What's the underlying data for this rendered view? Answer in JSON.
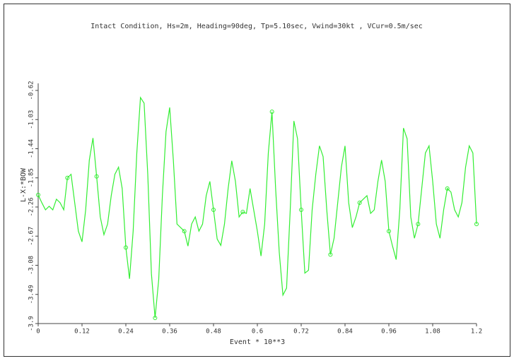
{
  "chart_data": {
    "type": "line",
    "title": "Intact Condition, Hs=2m, Heading=90deg, Tp=5.10sec, Vwind=30kt , VCur=0.5m/sec",
    "x_label": "Event * 10**3",
    "y_label": "L-X:*BOW",
    "x": [
      0,
      0.01,
      0.02,
      0.03,
      0.04,
      0.05,
      0.06,
      0.07,
      0.08,
      0.09,
      0.1,
      0.11,
      0.12,
      0.13,
      0.14,
      0.15,
      0.16,
      0.17,
      0.18,
      0.19,
      0.2,
      0.21,
      0.22,
      0.23,
      0.24,
      0.25,
      0.26,
      0.27,
      0.28,
      0.29,
      0.3,
      0.31,
      0.32,
      0.33,
      0.34,
      0.35,
      0.36,
      0.37,
      0.38,
      0.39,
      0.4,
      0.41,
      0.42,
      0.43,
      0.44,
      0.45,
      0.46,
      0.47,
      0.48,
      0.49,
      0.5,
      0.51,
      0.52,
      0.53,
      0.54,
      0.55,
      0.56,
      0.57,
      0.58,
      0.59,
      0.6,
      0.61,
      0.62,
      0.63,
      0.64,
      0.65,
      0.66,
      0.67,
      0.68,
      0.69,
      0.7,
      0.71,
      0.72,
      0.73,
      0.74,
      0.75,
      0.76,
      0.77,
      0.78,
      0.79,
      0.8,
      0.81,
      0.82,
      0.83,
      0.84,
      0.85,
      0.86,
      0.87,
      0.88,
      0.89,
      0.9,
      0.91,
      0.92,
      0.93,
      0.94,
      0.95,
      0.96,
      0.97,
      0.98,
      0.99,
      1,
      1.01,
      1.02,
      1.03,
      1.04,
      1.05,
      1.06,
      1.07,
      1.08,
      1.09,
      1.1,
      1.11,
      1.12,
      1.13,
      1.14,
      1.15,
      1.16,
      1.17,
      1.18,
      1.19,
      1.2
    ],
    "series": [
      {
        "name": "L-X:*BOW",
        "color": "#33ee33",
        "values": [
          -2.09,
          -2.2,
          -2.3,
          -2.25,
          -2.3,
          -2.15,
          -2.2,
          -2.3,
          -1.85,
          -1.8,
          -2.2,
          -2.6,
          -2.75,
          -2.3,
          -1.6,
          -1.29,
          -1.83,
          -2.4,
          -2.65,
          -2.5,
          -2.1,
          -1.8,
          -1.7,
          -2.0,
          -2.83,
          -3.27,
          -2.6,
          -1.5,
          -0.72,
          -0.8,
          -1.8,
          -3.2,
          -3.82,
          -3.28,
          -2.1,
          -1.2,
          -0.86,
          -1.6,
          -2.5,
          -2.55,
          -2.6,
          -2.81,
          -2.5,
          -2.4,
          -2.6,
          -2.5,
          -2.1,
          -1.9,
          -2.3,
          -2.71,
          -2.8,
          -2.5,
          -2.0,
          -1.61,
          -1.9,
          -2.4,
          -2.33,
          -2.35,
          -2.0,
          -2.3,
          -2.6,
          -2.95,
          -2.5,
          -1.5,
          -0.92,
          -2.0,
          -2.9,
          -3.5,
          -3.4,
          -2.3,
          -1.05,
          -1.3,
          -2.3,
          -3.19,
          -3.15,
          -2.3,
          -1.8,
          -1.4,
          -1.55,
          -2.3,
          -2.93,
          -2.7,
          -2.2,
          -1.7,
          -1.4,
          -2.2,
          -2.55,
          -2.4,
          -2.2,
          -2.15,
          -2.1,
          -2.35,
          -2.3,
          -1.9,
          -1.6,
          -1.9,
          -2.6,
          -2.81,
          -3.0,
          -2.3,
          -1.15,
          -1.3,
          -2.4,
          -2.7,
          -2.5,
          -2.0,
          -1.5,
          -1.4,
          -1.9,
          -2.5,
          -2.7,
          -2.3,
          -2.0,
          -2.05,
          -2.3,
          -2.4,
          -2.2,
          -1.7,
          -1.4,
          -1.5,
          -2.5
        ]
      }
    ],
    "xlim": [
      0,
      1.2
    ],
    "xticks": [
      0,
      0.12,
      0.24,
      0.36,
      0.48,
      0.6,
      0.72,
      0.84,
      0.96,
      1.08,
      1.2
    ],
    "ylim": [
      -3.9,
      -0.62
    ],
    "yticks": [
      -0.62,
      -1.03,
      -1.44,
      -1.85,
      -2.26,
      -2.67,
      -3.08,
      -3.49,
      -3.9
    ],
    "grid": false
  }
}
